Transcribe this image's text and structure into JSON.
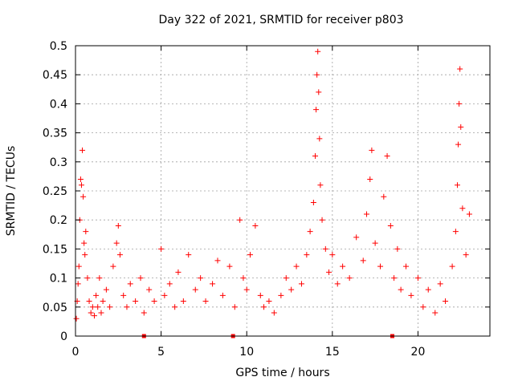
{
  "chart_data": {
    "type": "scatter",
    "title": "Day 322 of 2021, SRMTID for receiver p803",
    "xlabel": "GPS time / hours",
    "ylabel": "SRMTID / TECUs",
    "xlim": [
      0,
      24.2
    ],
    "ylim": [
      0,
      0.5
    ],
    "xticks": [
      0,
      5,
      10,
      15,
      20
    ],
    "yticks": [
      0,
      0.05,
      0.1,
      0.15,
      0.2,
      0.25,
      0.3,
      0.35,
      0.4,
      0.45,
      0.5
    ],
    "grid": true,
    "marker": "+",
    "color": "#ff0000",
    "series": [
      {
        "name": "SRMTID",
        "points": [
          [
            0.05,
            0.03
          ],
          [
            0.1,
            0.06
          ],
          [
            0.15,
            0.09
          ],
          [
            0.2,
            0.12
          ],
          [
            0.25,
            0.2
          ],
          [
            0.3,
            0.27
          ],
          [
            0.35,
            0.26
          ],
          [
            0.4,
            0.32
          ],
          [
            0.45,
            0.24
          ],
          [
            0.5,
            0.16
          ],
          [
            0.55,
            0.14
          ],
          [
            0.6,
            0.18
          ],
          [
            0.7,
            0.1
          ],
          [
            0.8,
            0.06
          ],
          [
            0.9,
            0.04
          ],
          [
            1.0,
            0.05
          ],
          [
            1.1,
            0.035
          ],
          [
            1.2,
            0.07
          ],
          [
            1.3,
            0.05
          ],
          [
            1.4,
            0.1
          ],
          [
            1.5,
            0.04
          ],
          [
            1.6,
            0.06
          ],
          [
            1.8,
            0.08
          ],
          [
            2.0,
            0.05
          ],
          [
            2.2,
            0.12
          ],
          [
            2.4,
            0.16
          ],
          [
            2.5,
            0.19
          ],
          [
            2.6,
            0.14
          ],
          [
            2.8,
            0.07
          ],
          [
            3.0,
            0.05
          ],
          [
            3.2,
            0.09
          ],
          [
            3.5,
            0.06
          ],
          [
            3.8,
            0.1
          ],
          [
            4.0,
            0.04
          ],
          [
            4.3,
            0.08
          ],
          [
            4.6,
            0.06
          ],
          [
            5.0,
            0.15
          ],
          [
            5.2,
            0.07
          ],
          [
            5.5,
            0.09
          ],
          [
            5.8,
            0.05
          ],
          [
            6.0,
            0.11
          ],
          [
            6.3,
            0.06
          ],
          [
            6.6,
            0.14
          ],
          [
            7.0,
            0.08
          ],
          [
            7.3,
            0.1
          ],
          [
            7.6,
            0.06
          ],
          [
            8.0,
            0.09
          ],
          [
            8.3,
            0.13
          ],
          [
            8.6,
            0.07
          ],
          [
            9.0,
            0.12
          ],
          [
            9.3,
            0.05
          ],
          [
            9.6,
            0.2
          ],
          [
            9.8,
            0.1
          ],
          [
            10.0,
            0.08
          ],
          [
            10.2,
            0.14
          ],
          [
            10.5,
            0.19
          ],
          [
            10.8,
            0.07
          ],
          [
            11.0,
            0.05
          ],
          [
            11.3,
            0.06
          ],
          [
            11.6,
            0.04
          ],
          [
            12.0,
            0.07
          ],
          [
            12.3,
            0.1
          ],
          [
            12.6,
            0.08
          ],
          [
            12.9,
            0.12
          ],
          [
            13.2,
            0.09
          ],
          [
            13.5,
            0.14
          ],
          [
            13.7,
            0.18
          ],
          [
            13.9,
            0.23
          ],
          [
            14.0,
            0.31
          ],
          [
            14.05,
            0.39
          ],
          [
            14.1,
            0.45
          ],
          [
            14.15,
            0.49
          ],
          [
            14.2,
            0.42
          ],
          [
            14.25,
            0.34
          ],
          [
            14.3,
            0.26
          ],
          [
            14.4,
            0.2
          ],
          [
            14.6,
            0.15
          ],
          [
            14.8,
            0.11
          ],
          [
            15.0,
            0.14
          ],
          [
            15.3,
            0.09
          ],
          [
            15.6,
            0.12
          ],
          [
            16.0,
            0.1
          ],
          [
            16.4,
            0.17
          ],
          [
            16.8,
            0.13
          ],
          [
            17.0,
            0.21
          ],
          [
            17.2,
            0.27
          ],
          [
            17.3,
            0.32
          ],
          [
            17.5,
            0.16
          ],
          [
            17.8,
            0.12
          ],
          [
            18.0,
            0.24
          ],
          [
            18.2,
            0.31
          ],
          [
            18.4,
            0.19
          ],
          [
            18.6,
            0.1
          ],
          [
            18.8,
            0.15
          ],
          [
            19.0,
            0.08
          ],
          [
            19.3,
            0.12
          ],
          [
            19.6,
            0.07
          ],
          [
            20.0,
            0.1
          ],
          [
            20.3,
            0.05
          ],
          [
            20.6,
            0.08
          ],
          [
            21.0,
            0.04
          ],
          [
            21.3,
            0.09
          ],
          [
            21.6,
            0.06
          ],
          [
            22.0,
            0.12
          ],
          [
            22.2,
            0.18
          ],
          [
            22.3,
            0.26
          ],
          [
            22.35,
            0.33
          ],
          [
            22.4,
            0.4
          ],
          [
            22.45,
            0.46
          ],
          [
            22.5,
            0.36
          ],
          [
            22.6,
            0.22
          ],
          [
            22.8,
            0.14
          ],
          [
            23.0,
            0.21
          ]
        ]
      }
    ],
    "bottom_markers_x": [
      4.0,
      9.2,
      18.5
    ]
  }
}
